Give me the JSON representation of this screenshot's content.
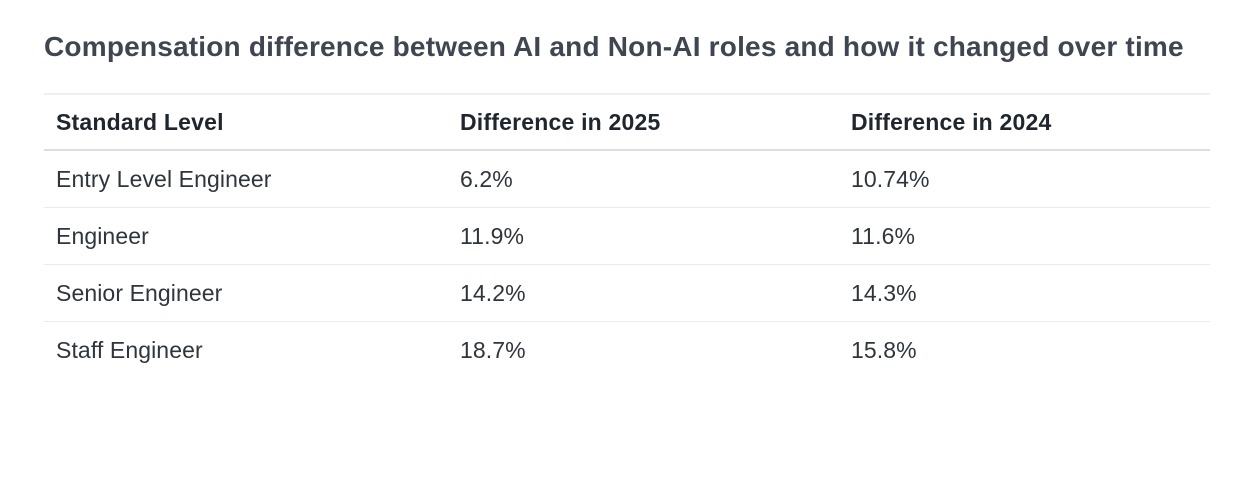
{
  "page": {
    "title": "Compensation difference between AI and Non-AI roles and how it changed over time"
  },
  "table": {
    "columns": [
      "Standard Level",
      "Difference in 2025",
      "Difference in 2024"
    ],
    "rows": [
      {
        "level": "Entry Level Engineer",
        "diff_2025": "6.2%",
        "diff_2024": "10.74%"
      },
      {
        "level": "Engineer",
        "diff_2025": "11.9%",
        "diff_2024": "11.6%"
      },
      {
        "level": "Senior Engineer",
        "diff_2025": "14.2%",
        "diff_2024": "14.3%"
      },
      {
        "level": "Staff Engineer",
        "diff_2025": "18.7%",
        "diff_2024": "15.8%"
      }
    ]
  },
  "colors": {
    "background": "#ffffff",
    "title_text": "#3f4651",
    "header_text": "#20262e",
    "cell_text": "#2f353c",
    "row_divider": "#e9ebee",
    "header_border": "#dbdee3",
    "table_top_border": "#edeff1"
  }
}
